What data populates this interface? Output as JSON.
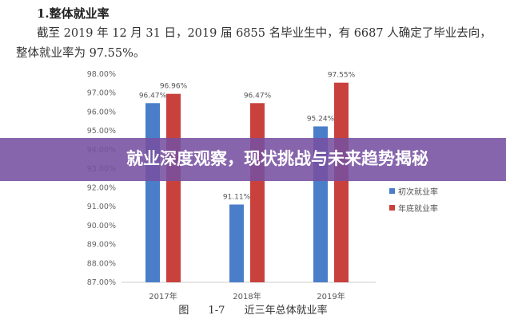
{
  "heading": "1.整体就业率",
  "paragraph": "截至 2019 年 12 月 31 日，2019 届 6855 名毕业生中，有 6687 人确定了毕业去向，整体就业率为 97.55%。",
  "banner": "就业深度观察，现状挑战与未来趋势揭秘",
  "chart_data": {
    "type": "bar",
    "title": "图 1-7 近三年总体就业率",
    "categories": [
      "2017年",
      "2018年",
      "2019年"
    ],
    "series": [
      {
        "name": "初次就业率",
        "color": "#4a7ec9",
        "values": [
          96.47,
          91.11,
          95.24
        ],
        "labels": [
          "96.47%",
          "91.11%",
          "95.24%"
        ]
      },
      {
        "name": "年底就业率",
        "color": "#c9413d",
        "values": [
          96.96,
          96.47,
          97.55
        ],
        "labels": [
          "96.96%",
          "96.47%",
          "97.55%"
        ]
      }
    ],
    "ylim": [
      87,
      98
    ],
    "yticks": [
      "87.00%",
      "88.00%",
      "89.00%",
      "90.00%",
      "91.00%",
      "92.00%",
      "93.00%",
      "94.00%",
      "95.00%",
      "96.00%",
      "97.00%",
      "98.00%"
    ],
    "legend": "right",
    "grid": false
  }
}
